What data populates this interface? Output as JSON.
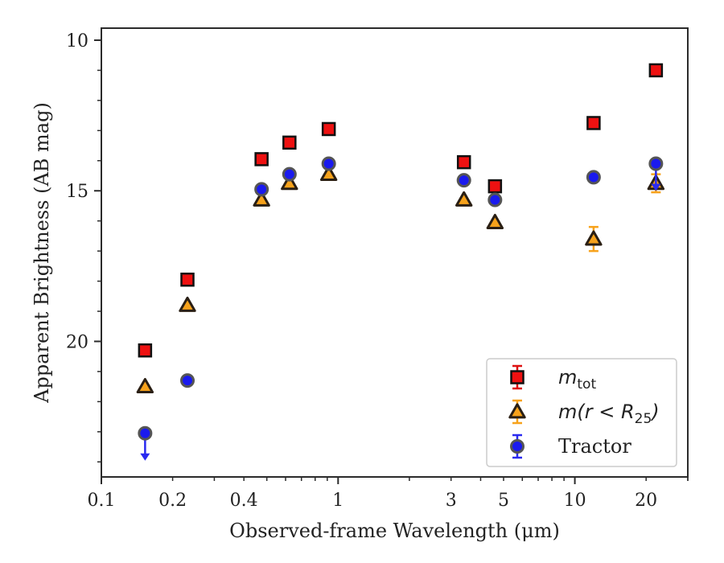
{
  "chart_data": {
    "type": "scatter",
    "xlabel": "Observed-frame Wavelength (μm)",
    "ylabel": "Apparent Brightness (AB mag)",
    "xscale": "log",
    "xlim": [
      0.1,
      30
    ],
    "ylim": [
      24.5,
      9.6
    ],
    "y_inverted": true,
    "x_ticks": [
      0.1,
      0.2,
      0.4,
      1,
      3,
      5,
      10,
      20
    ],
    "x_tick_labels": [
      "0.1",
      "0.2",
      "0.4",
      "1",
      "3",
      "5",
      "10",
      "20"
    ],
    "y_ticks": [
      10,
      15,
      20
    ],
    "y_tick_labels": [
      "10",
      "15",
      "20"
    ],
    "grid": false,
    "legend_position": "bottom-right",
    "series": [
      {
        "key": "mtot",
        "legend_main": "m",
        "legend_sub": "tot",
        "marker": "square",
        "face_color": "#ee1111",
        "error_color": "#dd1111",
        "x": [
          0.153,
          0.231,
          0.475,
          0.623,
          0.913,
          3.4,
          4.6,
          12.0,
          22.0
        ],
        "y": [
          20.3,
          17.95,
          13.95,
          13.4,
          12.95,
          14.05,
          14.85,
          12.75,
          11.0
        ],
        "yerr": [
          0,
          0,
          0,
          0,
          0,
          0,
          0,
          0,
          0
        ]
      },
      {
        "key": "mr25",
        "legend_main": "m(r < R",
        "legend_sub": "25",
        "legend_close": ")",
        "marker": "triangle",
        "face_color": "#f7a21b",
        "error_color": "#f7a21b",
        "x": [
          0.153,
          0.231,
          0.475,
          0.623,
          0.913,
          3.4,
          4.6,
          12.0,
          22.0
        ],
        "y": [
          21.5,
          18.8,
          15.3,
          14.75,
          14.45,
          15.3,
          16.05,
          16.6,
          14.75
        ],
        "yerr": [
          0,
          0,
          0,
          0,
          0,
          0,
          0,
          0.4,
          0.3
        ]
      },
      {
        "key": "tractor",
        "legend_main": "Tractor",
        "marker": "circle",
        "face_color": "#1a1aee",
        "error_color": "#2a2af0",
        "x": [
          0.153,
          0.231,
          0.475,
          0.623,
          0.913,
          3.4,
          4.6,
          12.0,
          22.0
        ],
        "y": [
          23.05,
          21.3,
          14.95,
          14.45,
          14.1,
          14.65,
          15.3,
          14.55,
          14.1
        ],
        "yerr": [
          0,
          0,
          0,
          0,
          0,
          0,
          0,
          0,
          0
        ],
        "upper_limit_arrows": [
          0.153,
          22.0
        ]
      }
    ]
  }
}
